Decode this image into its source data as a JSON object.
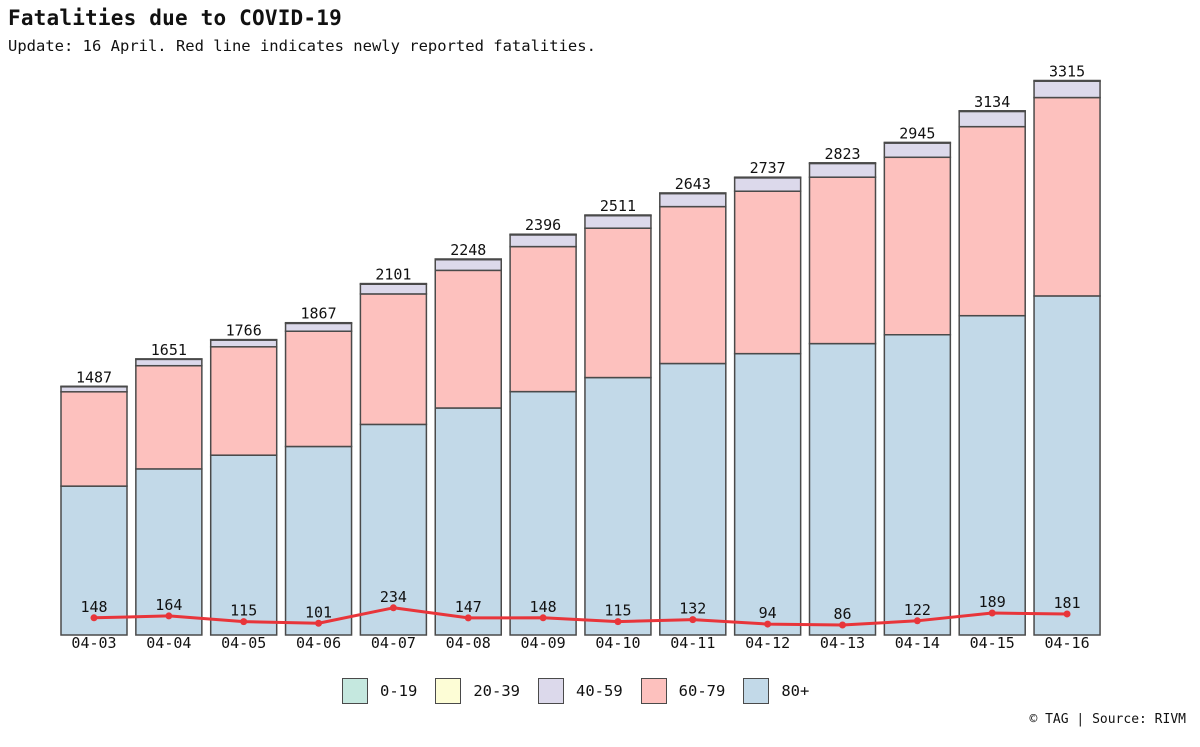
{
  "header": {
    "title": "Fatalities due to COVID-19",
    "subtitle": "Update: 16 April. Red line indicates newly reported fatalities."
  },
  "footer": {
    "credit": "© TAG | Source: RIVM"
  },
  "colors": {
    "0-19": "#c5e8df",
    "20-39": "#fdfdd6",
    "40-59": "#dcd9eb",
    "60-79": "#fdc1be",
    "80+": "#c2d9e8",
    "line": "#e8353a",
    "border": "#4a4a4a"
  },
  "chart_data": {
    "type": "bar",
    "stacked": true,
    "categories": [
      "04-03",
      "04-04",
      "04-05",
      "04-06",
      "04-07",
      "04-08",
      "04-09",
      "04-10",
      "04-11",
      "04-12",
      "04-13",
      "04-14",
      "04-15",
      "04-16"
    ],
    "totals": [
      1487,
      1651,
      1766,
      1867,
      2101,
      2248,
      2396,
      2511,
      2643,
      2737,
      2823,
      2945,
      3134,
      3315
    ],
    "series": [
      {
        "name": "0-19",
        "values": [
          0,
          0,
          0,
          0,
          0,
          0,
          0,
          0,
          0,
          0,
          0,
          0,
          0,
          0
        ]
      },
      {
        "name": "20-39",
        "values": [
          3,
          3,
          3,
          4,
          4,
          4,
          4,
          4,
          4,
          4,
          4,
          4,
          4,
          4
        ]
      },
      {
        "name": "40-59",
        "values": [
          30,
          38,
          40,
          47,
          58,
          64,
          70,
          75,
          78,
          80,
          82,
          85,
          91,
          98
        ]
      },
      {
        "name": "60-79",
        "values": [
          564,
          617,
          648,
          689,
          780,
          823,
          867,
          893,
          938,
          971,
          995,
          1061,
          1130,
          1186
        ]
      },
      {
        "name": "80+",
        "values": [
          890,
          993,
          1075,
          1127,
          1259,
          1357,
          1455,
          1539,
          1623,
          1682,
          1742,
          1795,
          1909,
          2027
        ]
      }
    ],
    "line": {
      "values": [
        148,
        164,
        115,
        101,
        234,
        147,
        148,
        115,
        132,
        94,
        86,
        122,
        189,
        181
      ]
    },
    "legend": [
      "0-19",
      "20-39",
      "40-59",
      "60-79",
      "80+"
    ],
    "legend_position": "bottom",
    "grid": false
  }
}
